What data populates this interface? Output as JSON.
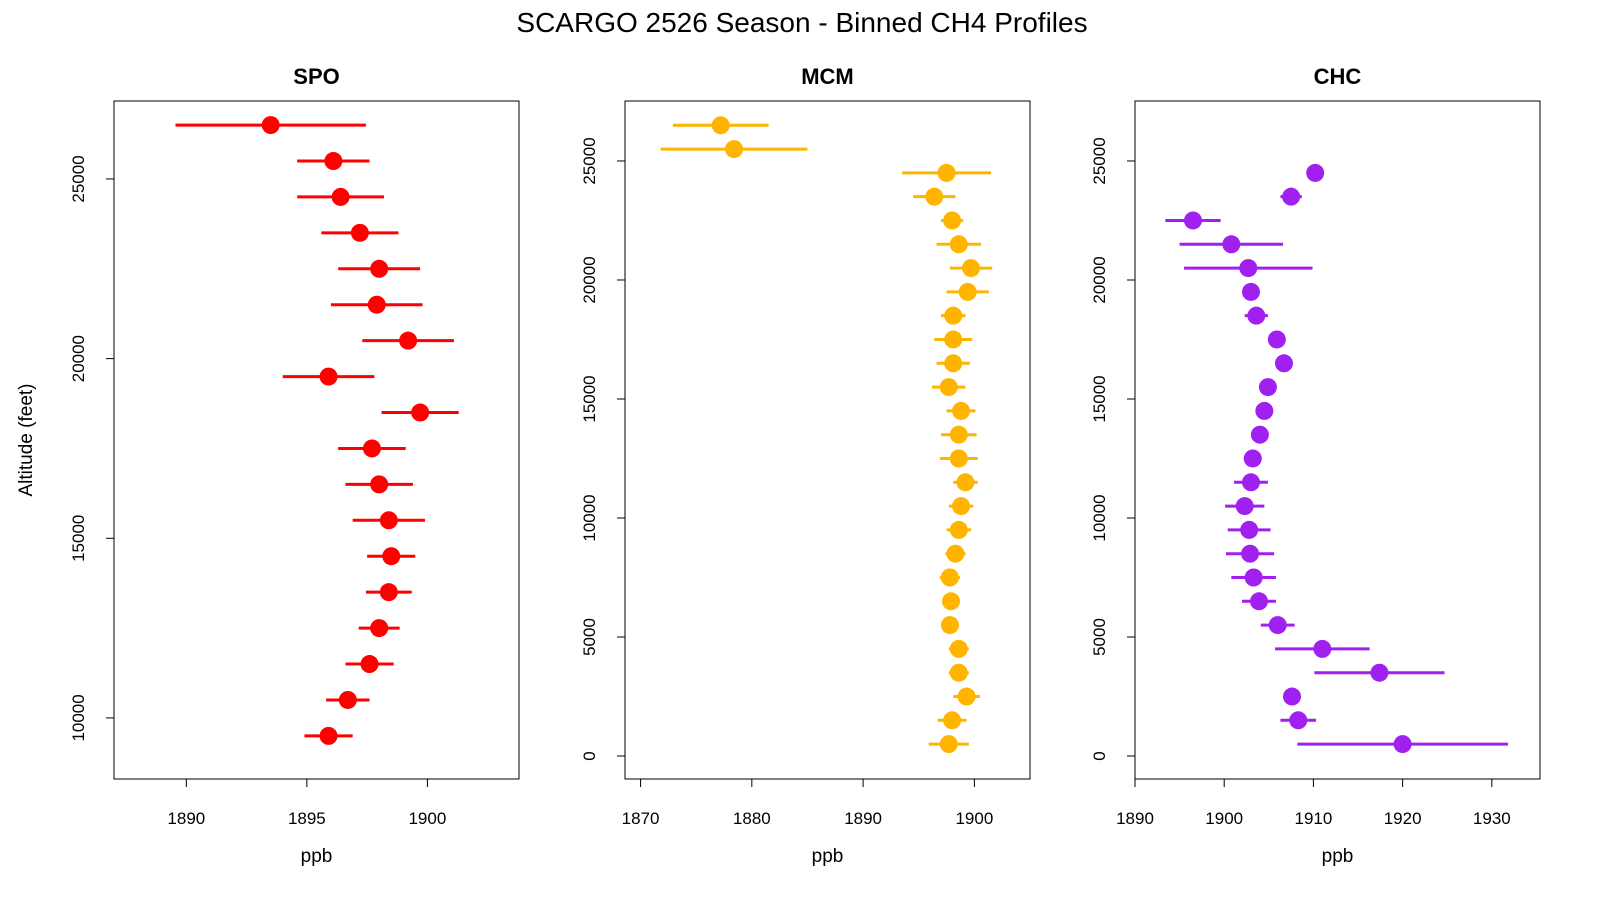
{
  "chart_data": {
    "title": "SCARGO 2526 Season - Binned CH4 Profiles",
    "ylabel": "Altitude (feet)",
    "panels": [
      {
        "type": "scatter",
        "title": "SPO",
        "xlabel": "ppb",
        "color": "#ff0000",
        "xlim": [
          1887.0,
          1903.8
        ],
        "ylim": [
          8300,
          27170
        ],
        "xticks": [
          1890,
          1895,
          1900
        ],
        "yticks": [
          10000,
          15000,
          20000,
          25000
        ],
        "altitude": [
          26500,
          25500,
          24500,
          23500,
          22500,
          21500,
          20500,
          19500,
          18500,
          17500,
          16500,
          15500,
          14500,
          13500,
          12500,
          11500,
          10500,
          9500
        ],
        "ch4": [
          1893.5,
          1896.1,
          1896.4,
          1897.2,
          1898.0,
          1897.9,
          1899.2,
          1895.9,
          1899.7,
          1897.7,
          1898.0,
          1898.4,
          1898.5,
          1898.4,
          1898.0,
          1897.6,
          1896.7,
          1895.9
        ],
        "error": [
          3.95,
          1.5,
          1.8,
          1.6,
          1.7,
          1.9,
          1.9,
          1.9,
          1.6,
          1.4,
          1.4,
          1.5,
          1.0,
          0.95,
          0.85,
          1.0,
          0.9,
          1.0
        ]
      },
      {
        "type": "scatter",
        "title": "MCM",
        "xlabel": "ppb",
        "color": "#ffb400",
        "xlim": [
          1868.6,
          1905.0
        ],
        "ylim": [
          -966,
          27520
        ],
        "xticks": [
          1870,
          1880,
          1890,
          1900
        ],
        "yticks": [
          0,
          5000,
          10000,
          15000,
          20000,
          25000
        ],
        "altitude": [
          26500,
          25500,
          24500,
          23500,
          22500,
          21500,
          20500,
          19500,
          18500,
          17500,
          16500,
          15500,
          14500,
          13500,
          12500,
          11500,
          10500,
          9500,
          8500,
          7500,
          6500,
          5500,
          4500,
          3500,
          2500,
          1500,
          500
        ],
        "ch4": [
          1877.2,
          1878.4,
          1897.5,
          1896.4,
          1898.0,
          1898.6,
          1899.7,
          1899.4,
          1898.1,
          1898.1,
          1898.1,
          1897.7,
          1898.8,
          1898.6,
          1898.6,
          1899.2,
          1898.8,
          1898.6,
          1898.3,
          1897.8,
          1897.9,
          1897.8,
          1898.6,
          1898.6,
          1899.3,
          1898.0,
          1897.7
        ],
        "error": [
          4.3,
          6.6,
          4.0,
          1.9,
          1.0,
          2.0,
          1.9,
          1.9,
          1.1,
          1.7,
          1.5,
          1.5,
          1.3,
          1.6,
          1.7,
          1.1,
          1.1,
          1.1,
          0.9,
          0.9,
          0.8,
          0.8,
          0.9,
          0.9,
          1.2,
          1.3,
          1.8
        ]
      },
      {
        "type": "scatter",
        "title": "CHC",
        "xlabel": "ppb",
        "color": "#a020f0",
        "xlim": [
          1890.0,
          1935.4
        ],
        "ylim": [
          -966,
          27520
        ],
        "xticks": [
          1890,
          1900,
          1910,
          1920,
          1930
        ],
        "yticks": [
          0,
          5000,
          10000,
          15000,
          20000,
          25000
        ],
        "altitude": [
          24500,
          23500,
          22500,
          21500,
          20500,
          19500,
          18500,
          17500,
          16500,
          15500,
          14500,
          13500,
          12500,
          11500,
          10500,
          9500,
          8500,
          7500,
          6500,
          5500,
          4500,
          3500,
          2500,
          1500,
          500
        ],
        "ch4": [
          1910.2,
          1907.5,
          1896.5,
          1900.8,
          1902.7,
          1903.0,
          1903.6,
          1905.9,
          1906.7,
          1904.9,
          1904.5,
          1904.0,
          1903.2,
          1903.0,
          1902.3,
          1902.8,
          1902.9,
          1903.3,
          1903.9,
          1906.0,
          1911.0,
          1917.4,
          1907.6,
          1908.3,
          1920.0
        ],
        "error": [
          0,
          1.2,
          3.1,
          5.8,
          7.2,
          0.8,
          1.3,
          0.5,
          0.5,
          0.5,
          0.5,
          0.9,
          1.0,
          1.9,
          2.2,
          2.4,
          2.7,
          2.5,
          1.9,
          1.9,
          5.3,
          7.3,
          0,
          2.0,
          11.8
        ]
      }
    ]
  }
}
